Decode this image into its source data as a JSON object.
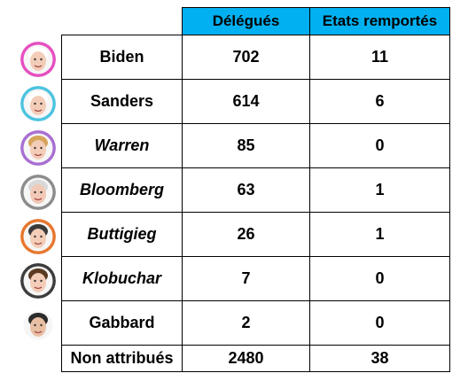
{
  "headers": [
    "",
    "Délégués",
    "Etats remportés"
  ],
  "rows": [
    {
      "name": "Biden",
      "italic": false,
      "delegates": "702",
      "states": "11",
      "ring": "#e64fc0",
      "hair": "#ffffff",
      "skin": "#f3cdb8"
    },
    {
      "name": "Sanders",
      "italic": false,
      "delegates": "614",
      "states": "6",
      "ring": "#4cc3e0",
      "hair": "#ffffff",
      "skin": "#f3cdb8"
    },
    {
      "name": "Warren",
      "italic": true,
      "delegates": "85",
      "states": "0",
      "ring": "#a86fd1",
      "hair": "#d6a45a",
      "skin": "#f3cdb8"
    },
    {
      "name": "Bloomberg",
      "italic": true,
      "delegates": "63",
      "states": "1",
      "ring": "#8c8c8c",
      "hair": "#d9d9d9",
      "skin": "#f1c9b6"
    },
    {
      "name": "Buttigieg",
      "italic": true,
      "delegates": "26",
      "states": "1",
      "ring": "#e8772e",
      "hair": "#3a3a3a",
      "skin": "#f3cdb8"
    },
    {
      "name": "Klobuchar",
      "italic": true,
      "delegates": "7",
      "states": "0",
      "ring": "#3d3d3d",
      "hair": "#5a3b22",
      "skin": "#f3cdb8"
    },
    {
      "name": "Gabbard",
      "italic": false,
      "delegates": "2",
      "states": "0",
      "ring": "#ffffff",
      "hair": "#2b2b2b",
      "skin": "#e9bfa4"
    }
  ],
  "footer": {
    "name": "Non attribués",
    "delegates": "2480",
    "states": "38"
  }
}
